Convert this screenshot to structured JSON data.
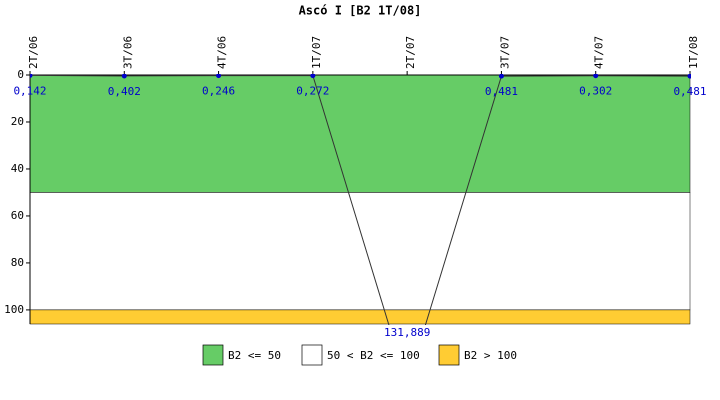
{
  "chart_data": {
    "type": "line",
    "title": "Ascó I [B2 1T/08]",
    "categories": [
      "2T/06",
      "3T/06",
      "4T/06",
      "1T/07",
      "2T/07",
      "3T/07",
      "4T/07",
      "1T/08"
    ],
    "series": [
      {
        "name": "B2",
        "color": "#333333",
        "marker_color": "#0000cc",
        "values": [
          0.142,
          0.402,
          0.246,
          0.272,
          131.889,
          0.481,
          0.302,
          0.481
        ],
        "value_labels": [
          "0,142",
          "0,402",
          "0,246",
          "0,272",
          "131,889",
          "0,481",
          "0,302",
          "0,481"
        ]
      }
    ],
    "ylim": [
      0,
      106
    ],
    "yticks": [
      0,
      20,
      40,
      60,
      80,
      100
    ],
    "y_inverted": true,
    "bands": [
      {
        "from": 0,
        "to": 50,
        "color": "#66cc66",
        "label": "B2 <= 50"
      },
      {
        "from": 50,
        "to": 100,
        "color": "#ffffff",
        "label": "50 < B2 <= 100"
      },
      {
        "from": 100,
        "to": 106,
        "color": "#ffcc33",
        "label": "B2 > 100"
      }
    ]
  }
}
